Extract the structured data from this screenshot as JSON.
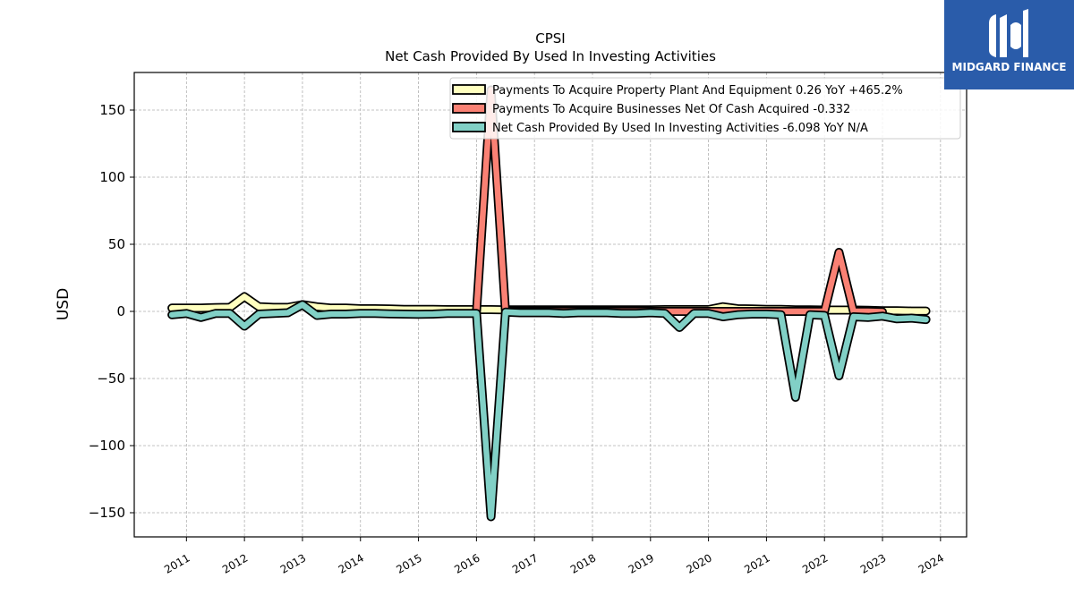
{
  "chart_data": {
    "type": "line",
    "title": "CPSI",
    "subtitle": "Net Cash Provided By Used In Investing Activities",
    "ylabel": "USD",
    "xlabel": "",
    "xlim": [
      2010.1,
      2024.45
    ],
    "ylim": [
      -168,
      178
    ],
    "x_tick_labels": [
      "2011",
      "2012",
      "2013",
      "2014",
      "2015",
      "2016",
      "2017",
      "2018",
      "2019",
      "2020",
      "2021",
      "2022",
      "2023",
      "2024"
    ],
    "y_ticks": [
      150,
      100,
      50,
      0,
      -50,
      -100,
      -150
    ],
    "y_tick_labels": [
      "150",
      "100",
      "50",
      "0",
      "−50",
      "−100",
      "−150"
    ],
    "grid": true,
    "legend_position": "top-right",
    "series": [
      {
        "name": "Payments To Acquire Property Plant And Equipment",
        "legend": "Payments To Acquire Property Plant And Equipment  0.26 YoY +465.2%",
        "color": "#ffffbf",
        "x": [
          2010.75,
          2011.0,
          2011.25,
          2011.5,
          2011.75,
          2012.0,
          2012.25,
          2012.5,
          2012.75,
          2013.0,
          2013.25,
          2013.5,
          2013.75,
          2014.0,
          2014.25,
          2014.5,
          2014.75,
          2015.0,
          2015.25,
          2015.5,
          2015.75,
          2016.0,
          2016.25,
          2016.5,
          2016.75,
          2017.0,
          2017.25,
          2017.5,
          2017.75,
          2018.0,
          2018.25,
          2018.5,
          2018.75,
          2019.0,
          2019.25,
          2019.5,
          2019.75,
          2020.0,
          2020.25,
          2020.5,
          2020.75,
          2021.0,
          2021.25,
          2021.5,
          2021.75,
          2022.0,
          2022.25,
          2022.5,
          2022.75,
          2023.0,
          2023.25,
          2023.5,
          2023.75
        ],
        "values": [
          2.5,
          2.5,
          2.5,
          2.8,
          3.0,
          11.0,
          3.5,
          3.0,
          3.0,
          5.0,
          3.5,
          2.5,
          2.5,
          2.0,
          2.0,
          1.8,
          1.5,
          1.5,
          1.5,
          1.3,
          1.3,
          1.3,
          1.3,
          1.2,
          1.2,
          1.2,
          1.2,
          1.2,
          1.2,
          1.2,
          1.2,
          1.2,
          1.2,
          1.2,
          1.3,
          1.3,
          1.3,
          1.3,
          3.5,
          2.0,
          1.8,
          1.5,
          1.5,
          1.2,
          1.2,
          1.0,
          1.0,
          1.0,
          0.8,
          0.5,
          0.5,
          0.3,
          0.26
        ]
      },
      {
        "name": "Payments To Acquire Businesses Net Of Cash Acquired",
        "legend": "Payments To Acquire Businesses Net Of Cash Acquired  -0.332",
        "color": "#fa8174",
        "x": [
          2016.0,
          2016.25,
          2016.5,
          2016.75,
          2017.0,
          2017.25,
          2017.5,
          2017.75,
          2018.0,
          2018.25,
          2018.5,
          2018.75,
          2019.0,
          2019.25,
          2019.5,
          2019.75,
          2020.0,
          2020.25,
          2020.5,
          2020.75,
          2021.0,
          2021.25,
          2021.5,
          2021.75,
          2022.0,
          2022.25,
          2022.5,
          2022.75,
          2023.0
        ],
        "values": [
          0.0,
          165.0,
          0.0,
          0.0,
          0.0,
          0.0,
          0.0,
          0.0,
          0.0,
          0.0,
          0.0,
          0.0,
          0.0,
          0.0,
          0.0,
          0.0,
          0.0,
          0.0,
          0.0,
          0.0,
          0.0,
          0.0,
          0.0,
          0.0,
          0.0,
          44.0,
          0.0,
          0.0,
          -0.332
        ]
      },
      {
        "name": "Net Cash Provided By Used In Investing Activities",
        "legend": "Net Cash Provided By Used In Investing Activities  -6.098 YoY N/A",
        "color": "#81d0c6",
        "x": [
          2010.75,
          2011.0,
          2011.25,
          2011.5,
          2011.75,
          2012.0,
          2012.25,
          2012.5,
          2012.75,
          2013.0,
          2013.25,
          2013.5,
          2013.75,
          2014.0,
          2014.25,
          2014.5,
          2014.75,
          2015.0,
          2015.25,
          2015.5,
          2015.75,
          2016.0,
          2016.25,
          2016.5,
          2016.75,
          2017.0,
          2017.25,
          2017.5,
          2017.75,
          2018.0,
          2018.25,
          2018.5,
          2018.75,
          2019.0,
          2019.25,
          2019.5,
          2019.75,
          2020.0,
          2020.25,
          2020.5,
          2020.75,
          2021.0,
          2021.25,
          2021.5,
          2021.75,
          2022.0,
          2022.25,
          2022.5,
          2022.75,
          2023.0,
          2023.25,
          2023.5,
          2023.75
        ],
        "values": [
          -2.5,
          -1.5,
          -4.5,
          -1.5,
          -1.5,
          -11.0,
          -2.0,
          -1.5,
          -1.0,
          5.0,
          -3.0,
          -2.0,
          -2.0,
          -1.5,
          -1.5,
          -1.8,
          -2.0,
          -2.2,
          -2.0,
          -1.5,
          -1.5,
          -1.5,
          -153.0,
          -0.5,
          -1.0,
          -1.0,
          -1.0,
          -1.5,
          -1.0,
          -1.0,
          -1.0,
          -1.5,
          -1.5,
          -1.0,
          -1.5,
          -12.0,
          -1.5,
          -1.5,
          -4.0,
          -2.5,
          -2.0,
          -2.0,
          -2.5,
          -64.0,
          -2.5,
          -3.0,
          -48.0,
          -4.0,
          -4.5,
          -3.5,
          -5.5,
          -5.0,
          -6.098
        ]
      }
    ]
  },
  "logo": {
    "text": "MIDGARD FINANCE",
    "icon": "midgard-logo-icon",
    "background": "#2a5caa"
  }
}
